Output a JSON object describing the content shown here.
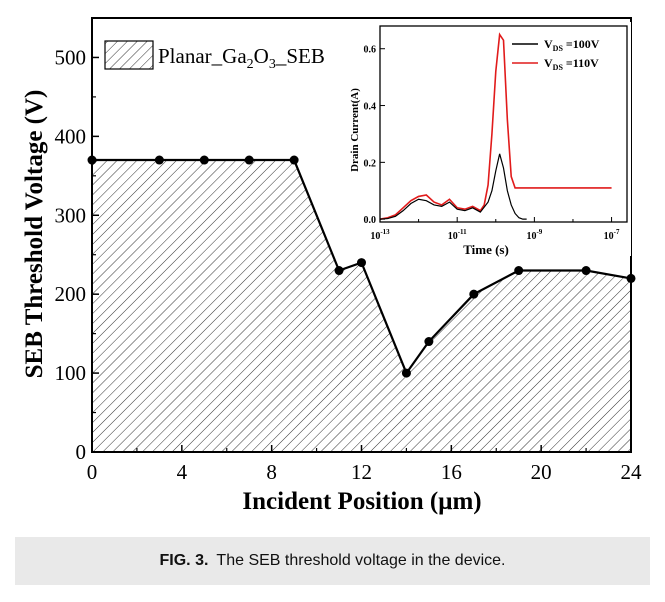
{
  "chart_data": [
    {
      "type": "area",
      "ylabel": "SEB Threshold Voltage (V)",
      "xlabel_prefix": "Incident Position (",
      "xlabel_unit": "μm",
      "xlabel_suffix": ")",
      "xlim": [
        0,
        24
      ],
      "ylim": [
        0,
        550
      ],
      "xticks": [
        0,
        4,
        8,
        12,
        16,
        20,
        24
      ],
      "yticks": [
        0,
        100,
        200,
        300,
        400,
        500
      ],
      "legend": {
        "prefix": "Planar_Ga",
        "sub1": "2",
        "mid": "O",
        "sub2": "3",
        "suffix": "_SEB"
      },
      "series": [
        {
          "name": "Planar_Ga2O3_SEB",
          "x": [
            0,
            3,
            5,
            7,
            9,
            11,
            12,
            14,
            15,
            17,
            19,
            22,
            24
          ],
          "y": [
            370,
            370,
            370,
            370,
            370,
            230,
            240,
            100,
            140,
            200,
            230,
            230,
            220
          ]
        }
      ]
    },
    {
      "type": "line",
      "inset": true,
      "xscale": "log",
      "xlabel": "Time (s)",
      "ylabel": "Drain Current(A)",
      "xticks": [
        {
          "base": "10",
          "exp": "-13"
        },
        {
          "base": "10",
          "exp": "-11"
        },
        {
          "base": "10",
          "exp": "-9"
        },
        {
          "base": "10",
          "exp": "-7"
        }
      ],
      "yticks": [
        "0.0",
        "0.2",
        "0.4",
        "0.6"
      ],
      "xlim_log10": [
        -13,
        -6.6
      ],
      "ylim": [
        -0.01,
        0.68
      ],
      "series": [
        {
          "name_main": "V",
          "name_sub": "DS",
          "name_suffix": " =100V",
          "color": "#000000",
          "log10_x": [
            -13,
            -12.8,
            -12.6,
            -12.4,
            -12.2,
            -12.0,
            -11.8,
            -11.6,
            -11.4,
            -11.2,
            -11.0,
            -10.8,
            -10.6,
            -10.4,
            -10.2,
            -10.1,
            -10.0,
            -9.9,
            -9.8,
            -9.7,
            -9.6,
            -9.5,
            -9.4,
            -9.3,
            -9.2
          ],
          "y": [
            0.0,
            0.002,
            0.01,
            0.03,
            0.055,
            0.07,
            0.065,
            0.05,
            0.045,
            0.06,
            0.035,
            0.03,
            0.04,
            0.025,
            0.06,
            0.1,
            0.17,
            0.23,
            0.18,
            0.1,
            0.05,
            0.02,
            0.005,
            0.0,
            0.0
          ]
        },
        {
          "name_main": "V",
          "name_sub": "DS",
          "name_suffix": " =110V",
          "color": "#e11b1b",
          "log10_x": [
            -13,
            -12.8,
            -12.6,
            -12.4,
            -12.2,
            -12.0,
            -11.8,
            -11.6,
            -11.4,
            -11.2,
            -11.0,
            -10.8,
            -10.6,
            -10.4,
            -10.3,
            -10.2,
            -10.1,
            -10.0,
            -9.9,
            -9.8,
            -9.7,
            -9.6,
            -9.5,
            -9.4,
            -9.3,
            -9.0,
            -8.5,
            -8.0,
            -7.5,
            -7.0
          ],
          "y": [
            0.0,
            0.005,
            0.015,
            0.04,
            0.065,
            0.08,
            0.085,
            0.06,
            0.05,
            0.07,
            0.04,
            0.035,
            0.045,
            0.03,
            0.05,
            0.12,
            0.3,
            0.52,
            0.65,
            0.63,
            0.35,
            0.15,
            0.11,
            0.11,
            0.11,
            0.11,
            0.11,
            0.11,
            0.11,
            0.11
          ]
        }
      ]
    }
  ],
  "caption": {
    "label": "FIG. 3.",
    "text": "The SEB threshold voltage in the device."
  }
}
